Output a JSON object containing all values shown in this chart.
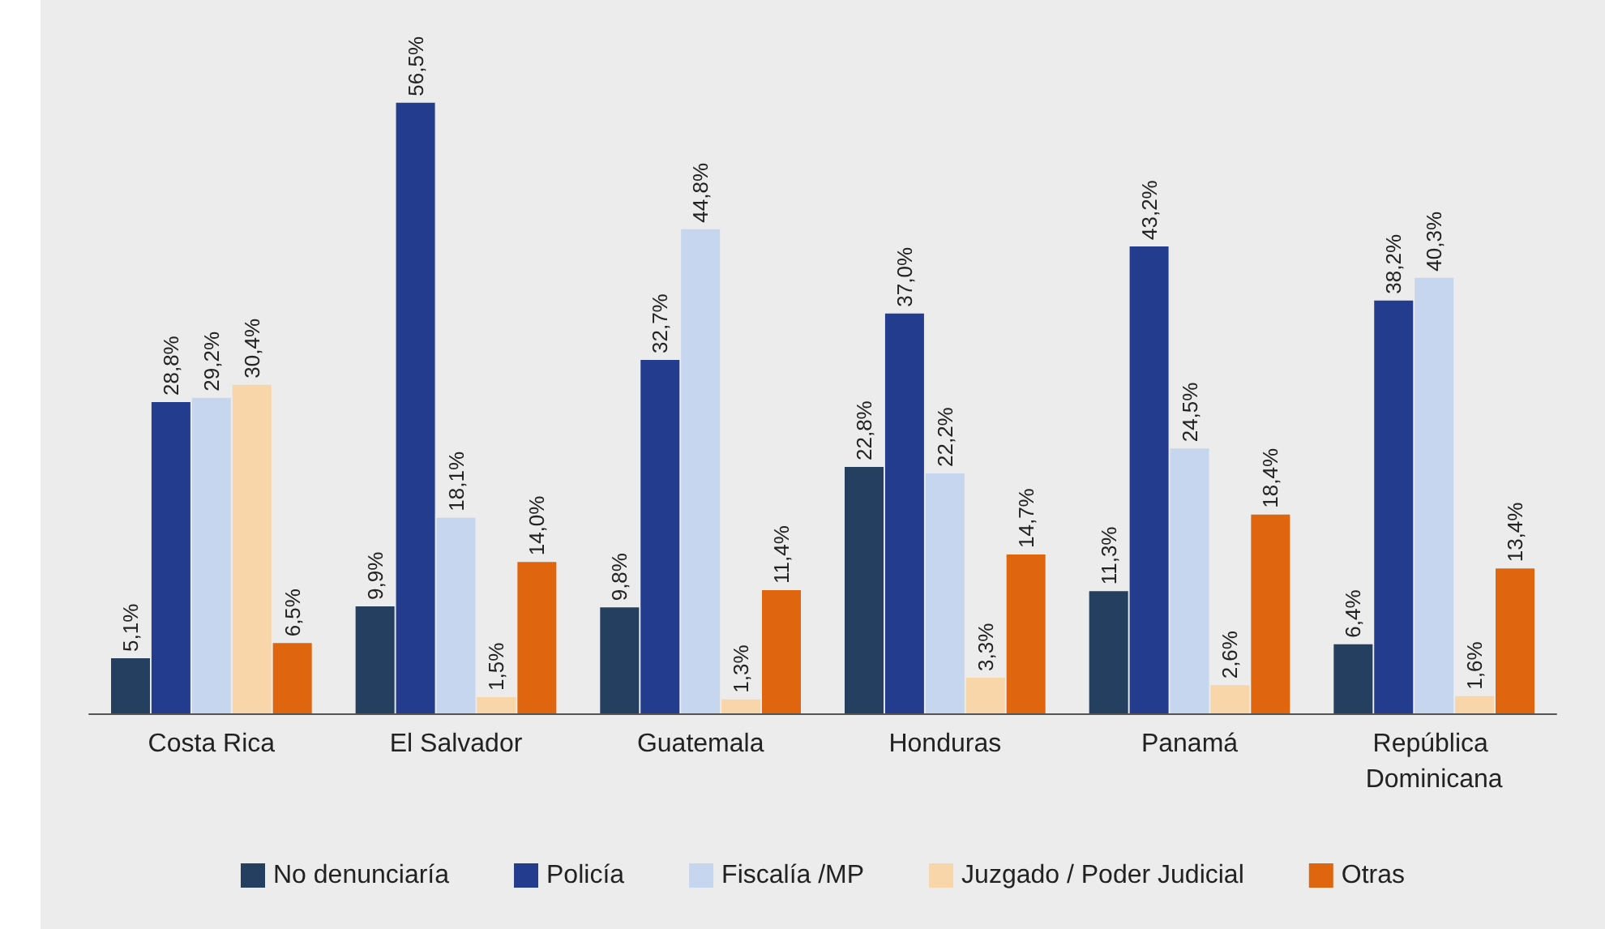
{
  "chart_data": {
    "type": "bar",
    "categories": [
      "Costa Rica",
      "El Salvador",
      "Guatemala",
      "Honduras",
      "Panamá",
      "República Dominicana"
    ],
    "series": [
      {
        "name": "No denunciaría",
        "color": "#253f60",
        "values": [
          5.1,
          9.9,
          9.8,
          22.8,
          11.3,
          6.4
        ],
        "value_labels": [
          "5,1%",
          "9,9%",
          "9,8%",
          "22,8%",
          "11,3%",
          "6,4%"
        ]
      },
      {
        "name": "Policía",
        "color": "#233c8e",
        "values": [
          28.8,
          56.5,
          32.7,
          37.0,
          43.2,
          38.2
        ],
        "value_labels": [
          "28,8%",
          "56,5%",
          "32,7%",
          "37,0%",
          "43,2%",
          "38,2%"
        ]
      },
      {
        "name": "Fiscalía /MP",
        "color": "#c7d6ef",
        "values": [
          29.2,
          18.1,
          44.8,
          22.2,
          24.5,
          40.3
        ],
        "value_labels": [
          "29,2%",
          "18,1%",
          "44,8%",
          "22,2%",
          "24,5%",
          "40,3%"
        ]
      },
      {
        "name": "Juzgado / Poder Judicial",
        "color": "#f9d5aa",
        "values": [
          30.4,
          1.5,
          1.3,
          3.3,
          2.6,
          1.6
        ],
        "value_labels": [
          "30,4%",
          "1,5%",
          "1,3%",
          "3,3%",
          "2,6%",
          "1,6%"
        ]
      },
      {
        "name": "Otras",
        "color": "#e0650f",
        "values": [
          6.5,
          14.0,
          11.4,
          14.7,
          18.4,
          13.4
        ],
        "value_labels": [
          "6,5%",
          "14,0%",
          "11,4%",
          "14,7%",
          "18,4%",
          "13,4%"
        ]
      }
    ],
    "legend": "bottom"
  }
}
